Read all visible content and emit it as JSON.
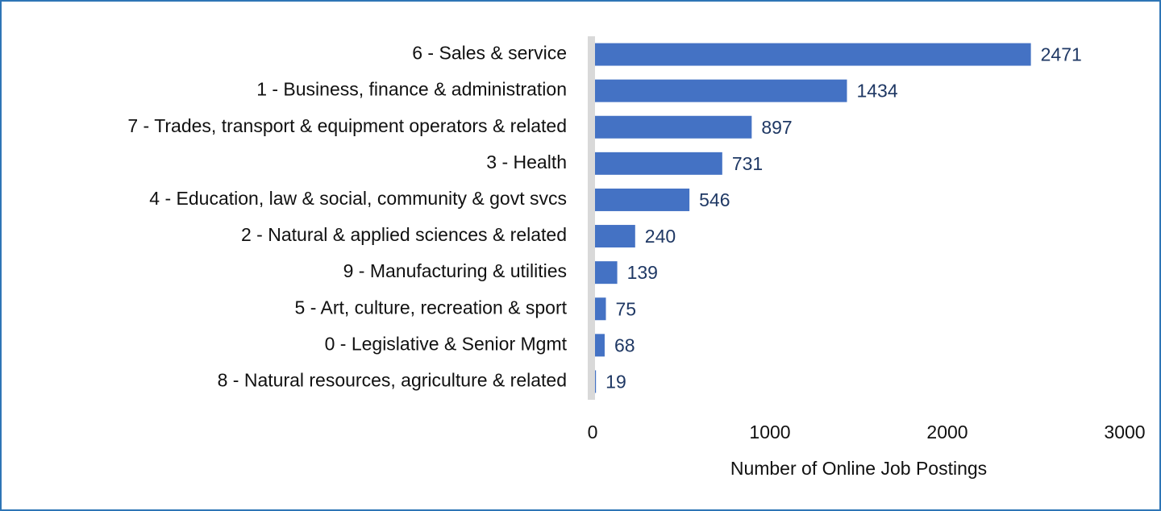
{
  "chart_data": {
    "type": "barh",
    "categories": [
      "6 - Sales & service",
      "1 - Business, finance & administration",
      "7 - Trades, transport & equipment operators & related",
      "3 - Health",
      "4 - Education, law & social, community & govt svcs",
      "2 - Natural & applied sciences & related",
      "9 - Manufacturing & utilities",
      "5 - Art, culture, recreation & sport",
      "0 - Legislative & Senior Mgmt",
      "8 - Natural resources, agriculture & related"
    ],
    "values": [
      2471,
      1434,
      897,
      731,
      546,
      240,
      139,
      75,
      68,
      19
    ],
    "color": "#4472c4",
    "x_label": "Number of Online Job Postings",
    "xlim": [
      0,
      3000
    ],
    "xticks": [
      0,
      1000,
      2000,
      3000
    ],
    "grid": false
  }
}
